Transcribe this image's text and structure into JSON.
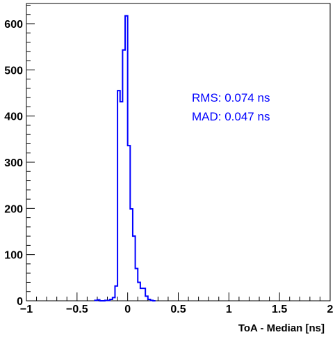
{
  "chart_data": {
    "type": "histogram",
    "xlabel": "ToA - Median [ns]",
    "ylabel": "",
    "xlim": [
      -1,
      2
    ],
    "ylim": [
      0,
      650
    ],
    "grid": false,
    "line_color": "#0000ff",
    "x_ticks": [
      {
        "v": -1,
        "label": "−1"
      },
      {
        "v": -0.5,
        "label": "−0.5"
      },
      {
        "v": 0,
        "label": "0"
      },
      {
        "v": 0.5,
        "label": "0.5"
      },
      {
        "v": 1,
        "label": "1"
      },
      {
        "v": 1.5,
        "label": "1.5"
      },
      {
        "v": 2,
        "label": "2"
      }
    ],
    "y_ticks": [
      {
        "v": 0,
        "label": "0"
      },
      {
        "v": 100,
        "label": "100"
      },
      {
        "v": 200,
        "label": "200"
      },
      {
        "v": 300,
        "label": "300"
      },
      {
        "v": 400,
        "label": "400"
      },
      {
        "v": 500,
        "label": "500"
      },
      {
        "v": 600,
        "label": "600"
      }
    ],
    "bin_width": 0.025,
    "bins": [
      {
        "x": -0.325,
        "y": 1
      },
      {
        "x": -0.3,
        "y": 2
      },
      {
        "x": -0.275,
        "y": 0
      },
      {
        "x": -0.25,
        "y": 0
      },
      {
        "x": -0.225,
        "y": 1
      },
      {
        "x": -0.2,
        "y": 1
      },
      {
        "x": -0.175,
        "y": 3
      },
      {
        "x": -0.15,
        "y": 7
      },
      {
        "x": -0.125,
        "y": 32
      },
      {
        "x": -0.1,
        "y": 455
      },
      {
        "x": -0.075,
        "y": 431
      },
      {
        "x": -0.05,
        "y": 543
      },
      {
        "x": -0.025,
        "y": 617
      },
      {
        "x": 0.0,
        "y": 336
      },
      {
        "x": 0.025,
        "y": 199
      },
      {
        "x": 0.05,
        "y": 140
      },
      {
        "x": 0.075,
        "y": 70
      },
      {
        "x": 0.1,
        "y": 40
      },
      {
        "x": 0.125,
        "y": 27
      },
      {
        "x": 0.15,
        "y": 27
      },
      {
        "x": 0.175,
        "y": 10
      },
      {
        "x": 0.2,
        "y": 3
      },
      {
        "x": 0.225,
        "y": 1
      },
      {
        "x": 0.25,
        "y": 0
      }
    ],
    "annotations": [
      "RMS: 0.074 ns",
      "MAD: 0.047 ns"
    ]
  }
}
